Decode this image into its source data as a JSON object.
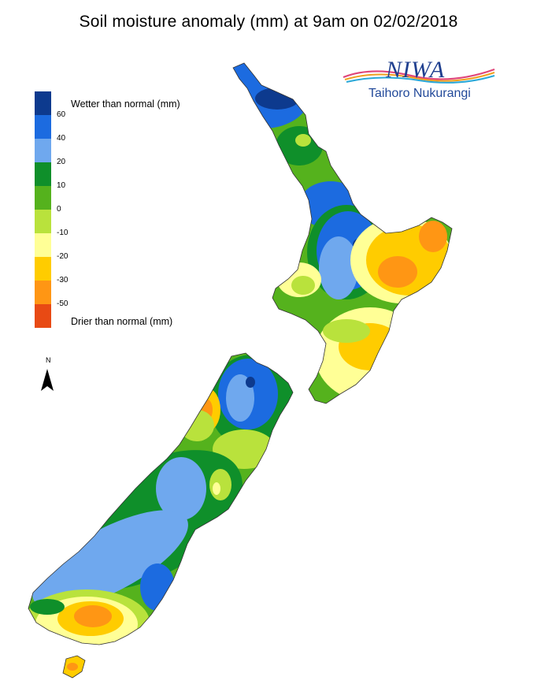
{
  "title": "Soil moisture anomaly (mm) at 9am on 02/02/2018",
  "logo": {
    "name": "NIWA",
    "subtitle": "Taihoro Nukurangi"
  },
  "legend": {
    "wetter_label": "Wetter than normal (mm)",
    "drier_label": "Drier than normal (mm)",
    "ticks": [
      "60",
      "40",
      "20",
      "10",
      "0",
      "-10",
      "-20",
      "-30",
      "-50"
    ],
    "colors": [
      "#0d3a8e",
      "#1c6be0",
      "#6fa8ee",
      "#0f8f2a",
      "#55b21d",
      "#b9e23c",
      "#ffff96",
      "#ffcc00",
      "#ff9614",
      "#e84a14"
    ]
  },
  "north_label": "N"
}
